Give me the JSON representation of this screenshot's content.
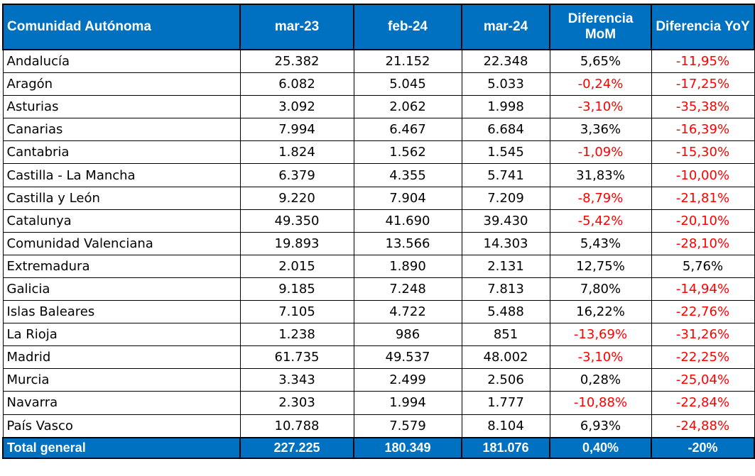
{
  "table": {
    "headers": [
      "Comunidad Autónoma",
      "mar-23",
      "feb-24",
      "mar-24",
      "Diferencia MoM",
      "Diferencia YoY"
    ],
    "rows": [
      [
        "Andalucía",
        "25.382",
        "21.152",
        "22.348",
        "5,65%",
        "-11,95%"
      ],
      [
        "Aragón",
        "6.082",
        "5.045",
        "5.033",
        "-0,24%",
        "-17,25%"
      ],
      [
        "Asturias",
        "3.092",
        "2.062",
        "1.998",
        "-3,10%",
        "-35,38%"
      ],
      [
        "Canarias",
        "7.994",
        "6.467",
        "6.684",
        "3,36%",
        "-16,39%"
      ],
      [
        "Cantabria",
        "1.824",
        "1.562",
        "1.545",
        "-1,09%",
        "-15,30%"
      ],
      [
        "Castilla - La Mancha",
        "6.379",
        "4.355",
        "5.741",
        "31,83%",
        "-10,00%"
      ],
      [
        "Castilla y León",
        "9.220",
        "7.904",
        "7.209",
        "-8,79%",
        "-21,81%"
      ],
      [
        "Catalunya",
        "49.350",
        "41.690",
        "39.430",
        "-5,42%",
        "-20,10%"
      ],
      [
        "Comunidad Valenciana",
        "19.893",
        "13.566",
        "14.303",
        "5,43%",
        "-28,10%"
      ],
      [
        "Extremadura",
        "2.015",
        "1.890",
        "2.131",
        "12,75%",
        "5,76%"
      ],
      [
        "Galicia",
        "9.185",
        "7.248",
        "7.813",
        "7,80%",
        "-14,94%"
      ],
      [
        "Islas Baleares",
        "7.105",
        "4.722",
        "5.488",
        "16,22%",
        "-22,76%"
      ],
      [
        "La Rioja",
        "1.238",
        "986",
        "851",
        "-13,69%",
        "-31,26%"
      ],
      [
        "Madrid",
        "61.735",
        "49.537",
        "48.002",
        "-3,10%",
        "-22,25%"
      ],
      [
        "Murcia",
        "3.343",
        "2.499",
        "2.506",
        "0,28%",
        "-25,04%"
      ],
      [
        "Navarra",
        "2.303",
        "1.994",
        "1.777",
        "-10,88%",
        "-22,84%"
      ],
      [
        "País Vasco",
        "10.788",
        "7.579",
        "8.104",
        "6,93%",
        "-24,88%"
      ]
    ],
    "total": [
      "Total general",
      "227.225",
      "180.349",
      "181.076",
      "0,40%",
      "-20%"
    ]
  },
  "colors": {
    "header_bg": "#0070c0",
    "header_text": "#ffffff",
    "negative": "#ff0000",
    "positive": "#000000",
    "border": "#000000"
  }
}
